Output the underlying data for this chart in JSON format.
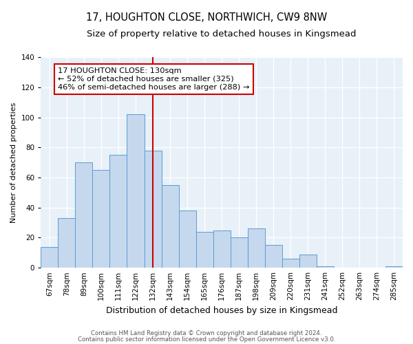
{
  "title": "17, HOUGHTON CLOSE, NORTHWICH, CW9 8NW",
  "subtitle": "Size of property relative to detached houses in Kingsmead",
  "bar_labels": [
    "67sqm",
    "78sqm",
    "89sqm",
    "100sqm",
    "111sqm",
    "122sqm",
    "132sqm",
    "143sqm",
    "154sqm",
    "165sqm",
    "176sqm",
    "187sqm",
    "198sqm",
    "209sqm",
    "220sqm",
    "231sqm",
    "241sqm",
    "252sqm",
    "263sqm",
    "274sqm",
    "285sqm"
  ],
  "bar_values": [
    14,
    33,
    70,
    65,
    75,
    102,
    78,
    55,
    38,
    24,
    25,
    20,
    26,
    15,
    6,
    9,
    1,
    0,
    0,
    0,
    1
  ],
  "bar_color": "#c5d8ed",
  "bar_edge_color": "#5b9bd5",
  "vline_x_index": 6,
  "vline_color": "#cc0000",
  "ylabel": "Number of detached properties",
  "xlabel": "Distribution of detached houses by size in Kingsmead",
  "ylim": [
    0,
    140
  ],
  "yticks": [
    0,
    20,
    40,
    60,
    80,
    100,
    120,
    140
  ],
  "annotation_title": "17 HOUGHTON CLOSE: 130sqm",
  "annotation_line1": "← 52% of detached houses are smaller (325)",
  "annotation_line2": "46% of semi-detached houses are larger (288) →",
  "footer_line1": "Contains HM Land Registry data © Crown copyright and database right 2024.",
  "footer_line2": "Contains public sector information licensed under the Open Government Licence v3.0.",
  "plot_bg_color": "#e8f0f8",
  "fig_bg_color": "#ffffff",
  "title_fontsize": 10.5,
  "subtitle_fontsize": 9.5,
  "ylabel_fontsize": 8,
  "xlabel_fontsize": 9,
  "tick_fontsize": 7.5,
  "footer_fontsize": 6.2,
  "annot_fontsize": 8.2
}
